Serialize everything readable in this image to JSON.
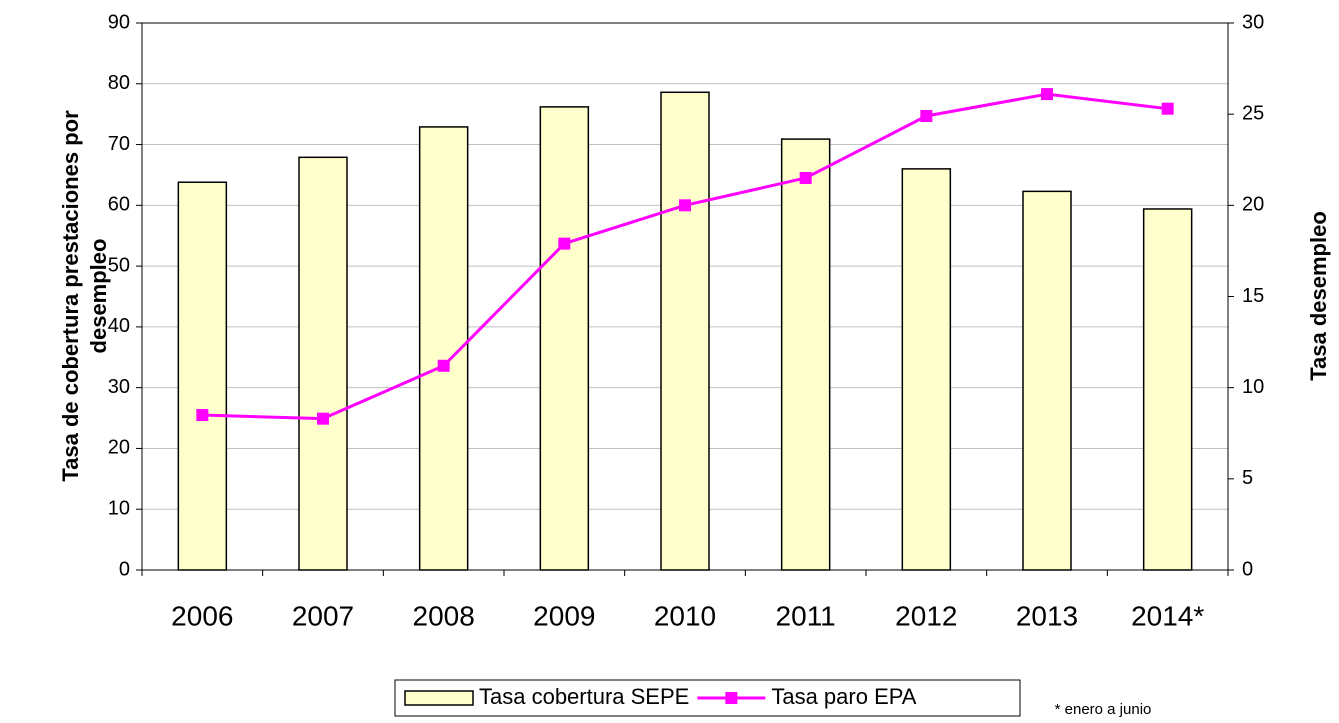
{
  "chart_data": {
    "type": "bar_line",
    "categories": [
      "2006",
      "2007",
      "2008",
      "2009",
      "2010",
      "2011",
      "2012",
      "2013",
      "2014*"
    ],
    "series": [
      {
        "name": "Tasa cobertura SEPE",
        "type": "bar",
        "color": "#ffffcc",
        "values": [
          63.8,
          67.9,
          72.9,
          76.2,
          78.6,
          70.9,
          66.0,
          62.3,
          59.4
        ]
      },
      {
        "name": "Tasa paro EPA",
        "type": "line",
        "color": "#ff00ff",
        "axis": "y2",
        "values": [
          8.5,
          8.3,
          11.2,
          17.9,
          20.0,
          21.5,
          24.9,
          26.1,
          25.3
        ]
      }
    ],
    "ylabel": [
      "Tasa de cobertura prestaciones por",
      "desempleo"
    ],
    "y2label": "Tasa desempleo",
    "ylim": [
      0,
      90
    ],
    "yticks": [
      0,
      10,
      20,
      30,
      40,
      50,
      60,
      70,
      80,
      90
    ],
    "y2lim": [
      0,
      30
    ],
    "y2ticks": [
      0,
      5,
      10,
      15,
      20,
      25,
      30
    ],
    "grid": true,
    "legend": "bottom",
    "annotation": "* enero a junio"
  }
}
